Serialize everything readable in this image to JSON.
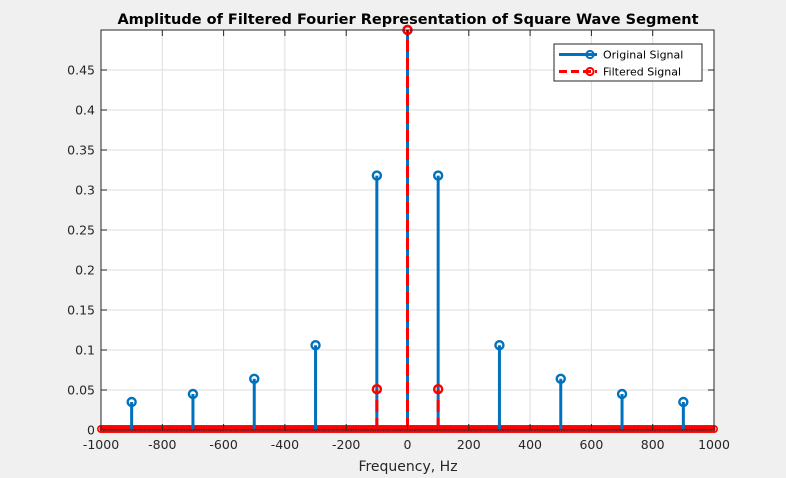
{
  "chart_data": {
    "type": "stem",
    "title": "Amplitude of Filtered  Fourier Representation of Square Wave Segment",
    "xlabel": "Frequency, Hz",
    "ylabel": "",
    "xlim": [
      -1000,
      1000
    ],
    "ylim": [
      0,
      0.5
    ],
    "grid": true,
    "legend_position": "top-right",
    "xticks": [
      "-1000",
      "-800",
      "-600",
      "-400",
      "-200",
      "0",
      "200",
      "400",
      "600",
      "800",
      "1000"
    ],
    "yticks": [
      "0",
      "0.05",
      "0.1",
      "0.15",
      "0.2",
      "0.25",
      "0.3",
      "0.35",
      "0.4",
      "0.45"
    ],
    "series": [
      {
        "name": "Original Signal",
        "color": "#0072bd",
        "style": "solid",
        "x": [
          -900,
          -700,
          -500,
          -300,
          -100,
          0,
          100,
          300,
          500,
          700,
          900
        ],
        "y": [
          0.035,
          0.045,
          0.064,
          0.106,
          0.318,
          0.5,
          0.318,
          0.106,
          0.064,
          0.045,
          0.035
        ]
      },
      {
        "name": "Filtered Signal",
        "color": "#ff0000",
        "style": "dashed",
        "x": [
          -100,
          0,
          100
        ],
        "y": [
          0.051,
          0.5,
          0.051
        ]
      }
    ]
  }
}
